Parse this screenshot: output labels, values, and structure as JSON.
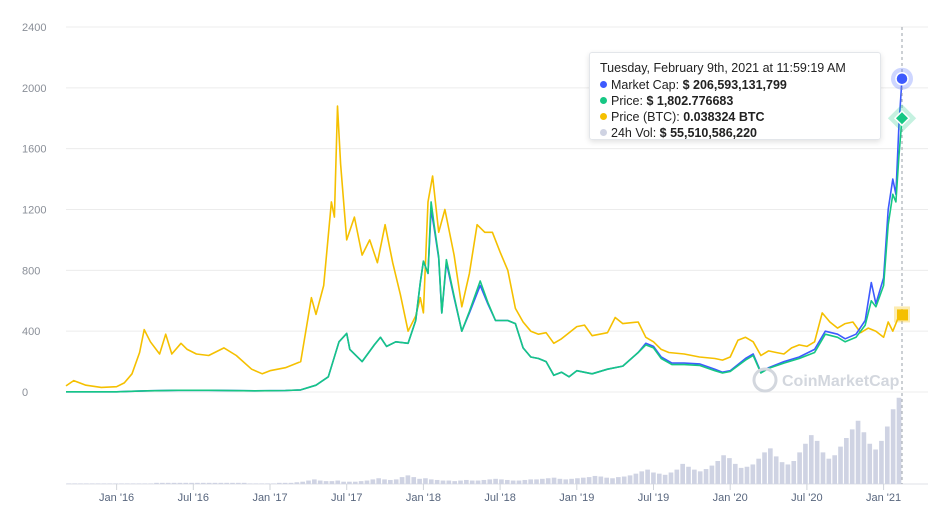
{
  "chart_data": {
    "type": "line",
    "title": "",
    "watermark": "CoinMarketCap",
    "ylim": [
      0,
      2400
    ],
    "yticks": [
      0,
      400,
      800,
      1200,
      1600,
      2000,
      2400
    ],
    "x_range": [
      2015.67,
      2021.12
    ],
    "x_ticks": [
      {
        "label": "Jan '16",
        "t": 2016.0
      },
      {
        "label": "Jul '16",
        "t": 2016.5
      },
      {
        "label": "Jan '17",
        "t": 2017.0
      },
      {
        "label": "Jul '17",
        "t": 2017.5
      },
      {
        "label": "Jan '18",
        "t": 2018.0
      },
      {
        "label": "Jul '18",
        "t": 2018.5
      },
      {
        "label": "Jan '19",
        "t": 2019.0
      },
      {
        "label": "Jul '19",
        "t": 2019.5
      },
      {
        "label": "Jan '20",
        "t": 2020.0
      },
      {
        "label": "Jul '20",
        "t": 2020.5
      },
      {
        "label": "Jan '21",
        "t": 2021.0
      }
    ],
    "colors": {
      "market_cap": "#3d5afe",
      "price": "#16c784",
      "price_btc": "#f5c000",
      "volume": "#cfd3e3",
      "grid": "#ececec"
    },
    "series": [
      {
        "name": "Market Cap",
        "color": "#3d5afe",
        "points": [
          [
            2015.67,
            1
          ],
          [
            2016.0,
            1
          ],
          [
            2016.2,
            8
          ],
          [
            2016.4,
            11
          ],
          [
            2016.6,
            11
          ],
          [
            2016.9,
            8
          ],
          [
            2017.1,
            10
          ],
          [
            2017.2,
            14
          ],
          [
            2017.3,
            45
          ],
          [
            2017.38,
            100
          ],
          [
            2017.45,
            330
          ],
          [
            2017.5,
            385
          ],
          [
            2017.52,
            280
          ],
          [
            2017.6,
            200
          ],
          [
            2017.68,
            310
          ],
          [
            2017.72,
            360
          ],
          [
            2017.76,
            300
          ],
          [
            2017.82,
            330
          ],
          [
            2017.9,
            320
          ],
          [
            2017.95,
            470
          ],
          [
            2017.98,
            720
          ],
          [
            2018.0,
            860
          ],
          [
            2018.03,
            780
          ],
          [
            2018.05,
            1200
          ],
          [
            2018.07,
            1080
          ],
          [
            2018.1,
            880
          ],
          [
            2018.12,
            520
          ],
          [
            2018.15,
            850
          ],
          [
            2018.2,
            620
          ],
          [
            2018.25,
            400
          ],
          [
            2018.3,
            520
          ],
          [
            2018.37,
            700
          ],
          [
            2018.42,
            580
          ],
          [
            2018.47,
            470
          ],
          [
            2018.55,
            470
          ],
          [
            2018.6,
            450
          ],
          [
            2018.65,
            290
          ],
          [
            2018.7,
            230
          ],
          [
            2018.75,
            220
          ],
          [
            2018.8,
            200
          ],
          [
            2018.85,
            110
          ],
          [
            2018.9,
            130
          ],
          [
            2018.95,
            100
          ],
          [
            2019.0,
            140
          ],
          [
            2019.1,
            120
          ],
          [
            2019.2,
            150
          ],
          [
            2019.3,
            170
          ],
          [
            2019.4,
            260
          ],
          [
            2019.45,
            320
          ],
          [
            2019.5,
            300
          ],
          [
            2019.55,
            230
          ],
          [
            2019.62,
            190
          ],
          [
            2019.7,
            190
          ],
          [
            2019.8,
            185
          ],
          [
            2019.9,
            150
          ],
          [
            2019.95,
            130
          ],
          [
            2020.0,
            140
          ],
          [
            2020.1,
            220
          ],
          [
            2020.15,
            250
          ],
          [
            2020.2,
            130
          ],
          [
            2020.25,
            160
          ],
          [
            2020.35,
            200
          ],
          [
            2020.45,
            230
          ],
          [
            2020.55,
            280
          ],
          [
            2020.62,
            400
          ],
          [
            2020.7,
            380
          ],
          [
            2020.75,
            350
          ],
          [
            2020.82,
            380
          ],
          [
            2020.88,
            470
          ],
          [
            2020.92,
            720
          ],
          [
            2020.95,
            580
          ],
          [
            2021.0,
            750
          ],
          [
            2021.03,
            1200
          ],
          [
            2021.06,
            1400
          ],
          [
            2021.08,
            1300
          ],
          [
            2021.1,
            1750
          ],
          [
            2021.12,
            2060
          ]
        ]
      },
      {
        "name": "Price",
        "color": "#16c784",
        "points": [
          [
            2015.67,
            1
          ],
          [
            2016.0,
            1
          ],
          [
            2016.2,
            8
          ],
          [
            2016.4,
            11
          ],
          [
            2016.6,
            11
          ],
          [
            2016.9,
            8
          ],
          [
            2017.1,
            10
          ],
          [
            2017.2,
            14
          ],
          [
            2017.3,
            45
          ],
          [
            2017.38,
            100
          ],
          [
            2017.45,
            330
          ],
          [
            2017.5,
            385
          ],
          [
            2017.52,
            280
          ],
          [
            2017.6,
            200
          ],
          [
            2017.68,
            310
          ],
          [
            2017.72,
            360
          ],
          [
            2017.76,
            300
          ],
          [
            2017.82,
            330
          ],
          [
            2017.9,
            320
          ],
          [
            2017.95,
            470
          ],
          [
            2017.98,
            720
          ],
          [
            2018.0,
            860
          ],
          [
            2018.03,
            780
          ],
          [
            2018.05,
            1250
          ],
          [
            2018.07,
            1100
          ],
          [
            2018.1,
            890
          ],
          [
            2018.12,
            520
          ],
          [
            2018.15,
            870
          ],
          [
            2018.2,
            630
          ],
          [
            2018.25,
            400
          ],
          [
            2018.3,
            530
          ],
          [
            2018.37,
            730
          ],
          [
            2018.42,
            590
          ],
          [
            2018.47,
            470
          ],
          [
            2018.55,
            470
          ],
          [
            2018.6,
            450
          ],
          [
            2018.65,
            290
          ],
          [
            2018.7,
            230
          ],
          [
            2018.75,
            220
          ],
          [
            2018.8,
            200
          ],
          [
            2018.85,
            110
          ],
          [
            2018.9,
            130
          ],
          [
            2018.95,
            100
          ],
          [
            2019.0,
            140
          ],
          [
            2019.1,
            120
          ],
          [
            2019.2,
            150
          ],
          [
            2019.3,
            170
          ],
          [
            2019.4,
            260
          ],
          [
            2019.45,
            310
          ],
          [
            2019.5,
            290
          ],
          [
            2019.55,
            220
          ],
          [
            2019.62,
            180
          ],
          [
            2019.7,
            180
          ],
          [
            2019.8,
            175
          ],
          [
            2019.9,
            140
          ],
          [
            2019.95,
            125
          ],
          [
            2020.0,
            135
          ],
          [
            2020.1,
            210
          ],
          [
            2020.15,
            240
          ],
          [
            2020.2,
            125
          ],
          [
            2020.25,
            155
          ],
          [
            2020.35,
            190
          ],
          [
            2020.45,
            220
          ],
          [
            2020.55,
            260
          ],
          [
            2020.62,
            380
          ],
          [
            2020.7,
            360
          ],
          [
            2020.75,
            330
          ],
          [
            2020.82,
            360
          ],
          [
            2020.88,
            440
          ],
          [
            2020.92,
            600
          ],
          [
            2020.95,
            560
          ],
          [
            2021.0,
            700
          ],
          [
            2021.03,
            1100
          ],
          [
            2021.06,
            1300
          ],
          [
            2021.08,
            1250
          ],
          [
            2021.1,
            1550
          ],
          [
            2021.12,
            1800
          ]
        ]
      },
      {
        "name": "Price (BTC)",
        "color": "#f5c000",
        "points": [
          [
            2015.67,
            40
          ],
          [
            2015.72,
            75
          ],
          [
            2015.8,
            45
          ],
          [
            2015.9,
            30
          ],
          [
            2016.0,
            35
          ],
          [
            2016.05,
            60
          ],
          [
            2016.1,
            120
          ],
          [
            2016.15,
            260
          ],
          [
            2016.18,
            410
          ],
          [
            2016.22,
            330
          ],
          [
            2016.28,
            250
          ],
          [
            2016.32,
            380
          ],
          [
            2016.36,
            250
          ],
          [
            2016.42,
            320
          ],
          [
            2016.46,
            280
          ],
          [
            2016.52,
            250
          ],
          [
            2016.6,
            240
          ],
          [
            2016.7,
            290
          ],
          [
            2016.78,
            240
          ],
          [
            2016.88,
            150
          ],
          [
            2016.95,
            120
          ],
          [
            2017.0,
            140
          ],
          [
            2017.1,
            160
          ],
          [
            2017.2,
            200
          ],
          [
            2017.27,
            620
          ],
          [
            2017.3,
            510
          ],
          [
            2017.35,
            700
          ],
          [
            2017.4,
            1250
          ],
          [
            2017.42,
            1150
          ],
          [
            2017.44,
            1880
          ],
          [
            2017.46,
            1500
          ],
          [
            2017.5,
            1000
          ],
          [
            2017.55,
            1150
          ],
          [
            2017.6,
            900
          ],
          [
            2017.65,
            1000
          ],
          [
            2017.7,
            850
          ],
          [
            2017.75,
            1100
          ],
          [
            2017.8,
            850
          ],
          [
            2017.85,
            640
          ],
          [
            2017.9,
            400
          ],
          [
            2017.95,
            500
          ],
          [
            2017.98,
            620
          ],
          [
            2018.0,
            520
          ],
          [
            2018.03,
            1250
          ],
          [
            2018.06,
            1420
          ],
          [
            2018.1,
            1050
          ],
          [
            2018.14,
            1200
          ],
          [
            2018.2,
            900
          ],
          [
            2018.25,
            560
          ],
          [
            2018.3,
            780
          ],
          [
            2018.35,
            1100
          ],
          [
            2018.4,
            1050
          ],
          [
            2018.45,
            1050
          ],
          [
            2018.5,
            920
          ],
          [
            2018.55,
            800
          ],
          [
            2018.6,
            550
          ],
          [
            2018.65,
            460
          ],
          [
            2018.7,
            400
          ],
          [
            2018.75,
            380
          ],
          [
            2018.8,
            390
          ],
          [
            2018.85,
            320
          ],
          [
            2018.9,
            350
          ],
          [
            2018.95,
            390
          ],
          [
            2019.0,
            430
          ],
          [
            2019.05,
            440
          ],
          [
            2019.1,
            370
          ],
          [
            2019.2,
            390
          ],
          [
            2019.25,
            490
          ],
          [
            2019.3,
            450
          ],
          [
            2019.4,
            460
          ],
          [
            2019.45,
            360
          ],
          [
            2019.5,
            330
          ],
          [
            2019.55,
            280
          ],
          [
            2019.6,
            260
          ],
          [
            2019.7,
            250
          ],
          [
            2019.8,
            230
          ],
          [
            2019.9,
            220
          ],
          [
            2019.95,
            210
          ],
          [
            2020.0,
            230
          ],
          [
            2020.05,
            340
          ],
          [
            2020.1,
            360
          ],
          [
            2020.15,
            330
          ],
          [
            2020.2,
            240
          ],
          [
            2020.25,
            270
          ],
          [
            2020.3,
            260
          ],
          [
            2020.35,
            250
          ],
          [
            2020.4,
            290
          ],
          [
            2020.45,
            310
          ],
          [
            2020.5,
            300
          ],
          [
            2020.55,
            330
          ],
          [
            2020.6,
            520
          ],
          [
            2020.65,
            460
          ],
          [
            2020.7,
            420
          ],
          [
            2020.75,
            450
          ],
          [
            2020.8,
            460
          ],
          [
            2020.85,
            390
          ],
          [
            2020.9,
            420
          ],
          [
            2020.95,
            400
          ],
          [
            2021.0,
            360
          ],
          [
            2021.03,
            460
          ],
          [
            2021.06,
            400
          ],
          [
            2021.08,
            450
          ],
          [
            2021.1,
            500
          ],
          [
            2021.12,
            510
          ]
        ]
      }
    ],
    "volume": [
      1,
      1,
      1,
      1,
      1,
      1,
      1,
      1,
      1,
      1,
      1,
      1,
      1,
      1,
      1,
      2,
      2,
      2,
      2,
      2,
      2,
      2,
      2,
      2,
      2,
      2,
      2,
      2,
      2,
      2,
      2,
      1,
      1,
      1,
      1,
      1,
      2,
      2,
      2,
      3,
      4,
      6,
      8,
      6,
      5,
      5,
      6,
      4,
      4,
      4,
      5,
      6,
      8,
      10,
      8,
      7,
      8,
      12,
      15,
      12,
      9,
      10,
      8,
      7,
      6,
      6,
      5,
      6,
      7,
      6,
      6,
      7,
      8,
      9,
      8,
      7,
      6,
      6,
      7,
      8,
      8,
      9,
      10,
      11,
      9,
      8,
      9,
      10,
      11,
      12,
      14,
      13,
      11,
      10,
      12,
      13,
      15,
      18,
      22,
      25,
      20,
      18,
      16,
      20,
      25,
      35,
      30,
      25,
      22,
      26,
      32,
      40,
      50,
      45,
      35,
      28,
      30,
      34,
      44,
      55,
      62,
      48,
      38,
      34,
      40,
      55,
      70,
      85,
      75,
      55,
      44,
      50,
      65,
      80,
      95,
      110,
      90,
      70,
      60,
      75,
      100,
      130,
      150
    ],
    "volume_scale_max": 160,
    "tooltip": {
      "title": "Tuesday, February 9th, 2021 at 11:59:19 AM",
      "rows": [
        {
          "label": "Market Cap:",
          "value": "$ 206,593,131,799",
          "color": "#3d5afe"
        },
        {
          "label": "Price:",
          "value": "$ 1,802.776683",
          "color": "#16c784"
        },
        {
          "label": "Price (BTC):",
          "value": "0.038324 BTC",
          "color": "#f5c000"
        },
        {
          "label": "24h Vol:",
          "value": "$ 55,510,586,220",
          "color": "#cfd3e3"
        }
      ]
    }
  }
}
